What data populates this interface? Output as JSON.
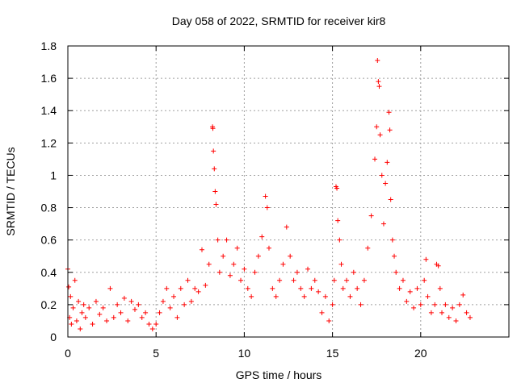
{
  "chart_data": {
    "type": "scatter",
    "title": "Day 058 of 2022, SRMTID for receiver kir8",
    "xlabel": "GPS time / hours",
    "ylabel": "SRMTID / TECUs",
    "xlim": [
      0,
      25
    ],
    "ylim": [
      0,
      1.8
    ],
    "xticks": [
      0,
      5,
      10,
      15,
      20
    ],
    "xtick_labels": [
      "0",
      "5",
      "10",
      "15",
      "20"
    ],
    "yticks": [
      0,
      0.2,
      0.4,
      0.6,
      0.8,
      1,
      1.2,
      1.4,
      1.6,
      1.8
    ],
    "ytick_labels": [
      "0",
      "0.2",
      "0.4",
      "0.6",
      "0.8",
      "1",
      "1.2",
      "1.4",
      "1.6",
      "1.8"
    ],
    "grid": true,
    "marker": "+",
    "color": "#ff0000",
    "series": [
      {
        "name": "SRMTID",
        "points": [
          [
            0.0,
            0.42
          ],
          [
            0.05,
            0.31
          ],
          [
            0.1,
            0.12
          ],
          [
            0.15,
            0.25
          ],
          [
            0.2,
            0.08
          ],
          [
            0.3,
            0.18
          ],
          [
            0.4,
            0.35
          ],
          [
            0.5,
            0.1
          ],
          [
            0.6,
            0.22
          ],
          [
            0.7,
            0.05
          ],
          [
            0.8,
            0.15
          ],
          [
            0.9,
            0.2
          ],
          [
            1.0,
            0.12
          ],
          [
            1.2,
            0.18
          ],
          [
            1.4,
            0.08
          ],
          [
            1.6,
            0.22
          ],
          [
            1.8,
            0.14
          ],
          [
            2.0,
            0.18
          ],
          [
            2.2,
            0.1
          ],
          [
            2.4,
            0.3
          ],
          [
            2.6,
            0.12
          ],
          [
            2.8,
            0.2
          ],
          [
            3.0,
            0.15
          ],
          [
            3.2,
            0.24
          ],
          [
            3.4,
            0.1
          ],
          [
            3.6,
            0.22
          ],
          [
            3.8,
            0.17
          ],
          [
            4.0,
            0.2
          ],
          [
            4.2,
            0.12
          ],
          [
            4.4,
            0.15
          ],
          [
            4.6,
            0.08
          ],
          [
            4.8,
            0.05
          ],
          [
            5.0,
            0.08
          ],
          [
            5.2,
            0.15
          ],
          [
            5.4,
            0.22
          ],
          [
            5.6,
            0.3
          ],
          [
            5.8,
            0.18
          ],
          [
            6.0,
            0.25
          ],
          [
            6.2,
            0.12
          ],
          [
            6.4,
            0.3
          ],
          [
            6.6,
            0.2
          ],
          [
            6.8,
            0.35
          ],
          [
            7.0,
            0.22
          ],
          [
            7.2,
            0.3
          ],
          [
            7.4,
            0.28
          ],
          [
            7.6,
            0.54
          ],
          [
            7.8,
            0.32
          ],
          [
            8.0,
            0.45
          ],
          [
            8.2,
            1.3
          ],
          [
            8.22,
            1.29
          ],
          [
            8.25,
            1.15
          ],
          [
            8.3,
            1.04
          ],
          [
            8.35,
            0.9
          ],
          [
            8.4,
            0.82
          ],
          [
            8.5,
            0.6
          ],
          [
            8.6,
            0.4
          ],
          [
            8.8,
            0.5
          ],
          [
            9.0,
            0.6
          ],
          [
            9.2,
            0.38
          ],
          [
            9.4,
            0.45
          ],
          [
            9.6,
            0.55
          ],
          [
            9.8,
            0.35
          ],
          [
            10.0,
            0.42
          ],
          [
            10.2,
            0.3
          ],
          [
            10.4,
            0.25
          ],
          [
            10.6,
            0.4
          ],
          [
            10.8,
            0.5
          ],
          [
            11.0,
            0.62
          ],
          [
            11.2,
            0.87
          ],
          [
            11.3,
            0.8
          ],
          [
            11.4,
            0.55
          ],
          [
            11.6,
            0.3
          ],
          [
            11.8,
            0.25
          ],
          [
            12.0,
            0.35
          ],
          [
            12.2,
            0.45
          ],
          [
            12.4,
            0.68
          ],
          [
            12.6,
            0.5
          ],
          [
            12.8,
            0.35
          ],
          [
            13.0,
            0.4
          ],
          [
            13.2,
            0.3
          ],
          [
            13.4,
            0.25
          ],
          [
            13.6,
            0.42
          ],
          [
            13.8,
            0.3
          ],
          [
            14.0,
            0.35
          ],
          [
            14.2,
            0.28
          ],
          [
            14.4,
            0.15
          ],
          [
            14.6,
            0.25
          ],
          [
            14.8,
            0.1
          ],
          [
            15.0,
            0.2
          ],
          [
            15.1,
            0.35
          ],
          [
            15.2,
            0.93
          ],
          [
            15.25,
            0.92
          ],
          [
            15.3,
            0.72
          ],
          [
            15.4,
            0.6
          ],
          [
            15.5,
            0.45
          ],
          [
            15.6,
            0.3
          ],
          [
            15.8,
            0.35
          ],
          [
            16.0,
            0.25
          ],
          [
            16.2,
            0.4
          ],
          [
            16.4,
            0.3
          ],
          [
            16.6,
            0.2
          ],
          [
            16.8,
            0.35
          ],
          [
            17.0,
            0.55
          ],
          [
            17.2,
            0.75
          ],
          [
            17.4,
            1.1
          ],
          [
            17.5,
            1.3
          ],
          [
            17.55,
            1.71
          ],
          [
            17.6,
            1.58
          ],
          [
            17.65,
            1.55
          ],
          [
            17.7,
            1.25
          ],
          [
            17.8,
            1.0
          ],
          [
            17.9,
            0.7
          ],
          [
            18.0,
            0.95
          ],
          [
            18.1,
            1.08
          ],
          [
            18.2,
            1.39
          ],
          [
            18.25,
            1.28
          ],
          [
            18.3,
            0.85
          ],
          [
            18.4,
            0.6
          ],
          [
            18.5,
            0.5
          ],
          [
            18.6,
            0.4
          ],
          [
            18.8,
            0.3
          ],
          [
            19.0,
            0.35
          ],
          [
            19.2,
            0.22
          ],
          [
            19.4,
            0.28
          ],
          [
            19.6,
            0.18
          ],
          [
            19.8,
            0.3
          ],
          [
            20.0,
            0.2
          ],
          [
            20.2,
            0.35
          ],
          [
            20.3,
            0.48
          ],
          [
            20.4,
            0.25
          ],
          [
            20.6,
            0.15
          ],
          [
            20.8,
            0.2
          ],
          [
            20.9,
            0.45
          ],
          [
            21.0,
            0.44
          ],
          [
            21.1,
            0.3
          ],
          [
            21.2,
            0.15
          ],
          [
            21.4,
            0.2
          ],
          [
            21.6,
            0.12
          ],
          [
            21.8,
            0.18
          ],
          [
            22.0,
            0.1
          ],
          [
            22.2,
            0.2
          ],
          [
            22.4,
            0.26
          ],
          [
            22.6,
            0.15
          ],
          [
            22.8,
            0.12
          ]
        ]
      }
    ]
  }
}
